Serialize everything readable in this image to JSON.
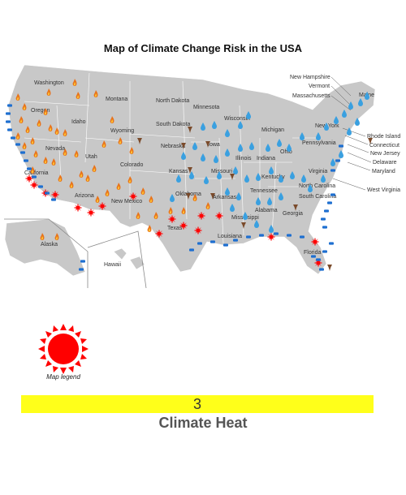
{
  "title": "Map of Climate Change Risk in the USA",
  "state_labels": [
    "Washington",
    "Oregon",
    "California",
    "Nevada",
    "Idaho",
    "Montana",
    "Wyoming",
    "Utah",
    "Arizona",
    "Colorado",
    "New Mexico",
    "North Dakota",
    "South Dakota",
    "Nebraska",
    "Kansas",
    "Oklahoma",
    "Texas",
    "Minnesota",
    "Iowa",
    "Missouri",
    "Arkansas",
    "Louisiana",
    "Wisconsin",
    "Illinois",
    "Michigan",
    "Indiana",
    "Ohio",
    "Kentucky",
    "Tennessee",
    "Mississippi",
    "Alabama",
    "Georgia",
    "Florida",
    "South Carolina",
    "North Carolina",
    "Virginia",
    "West Virginia",
    "Pennsylvania",
    "New York",
    "Maine",
    "New Hampshire",
    "Vermont",
    "Massachusetts",
    "Rhode Island",
    "Connecticut",
    "New Jersey",
    "Delaware",
    "Maryland",
    "Alaska",
    "Hawaii"
  ],
  "icon_types": [
    "fire-icon",
    "water-drop-icon",
    "tornado-icon",
    "heat-sun-icon",
    "coastal-flood-icon"
  ],
  "colors": {
    "land": "#c8c8c8",
    "fire": "#e8731a",
    "water": "#3aa0e0",
    "heat": "#ff0000",
    "tornado": "#7a4a2a",
    "bar": "#ffff1a"
  },
  "legend": {
    "caption": "Map legend",
    "risk_level": "3",
    "category": "Climate Heat"
  }
}
